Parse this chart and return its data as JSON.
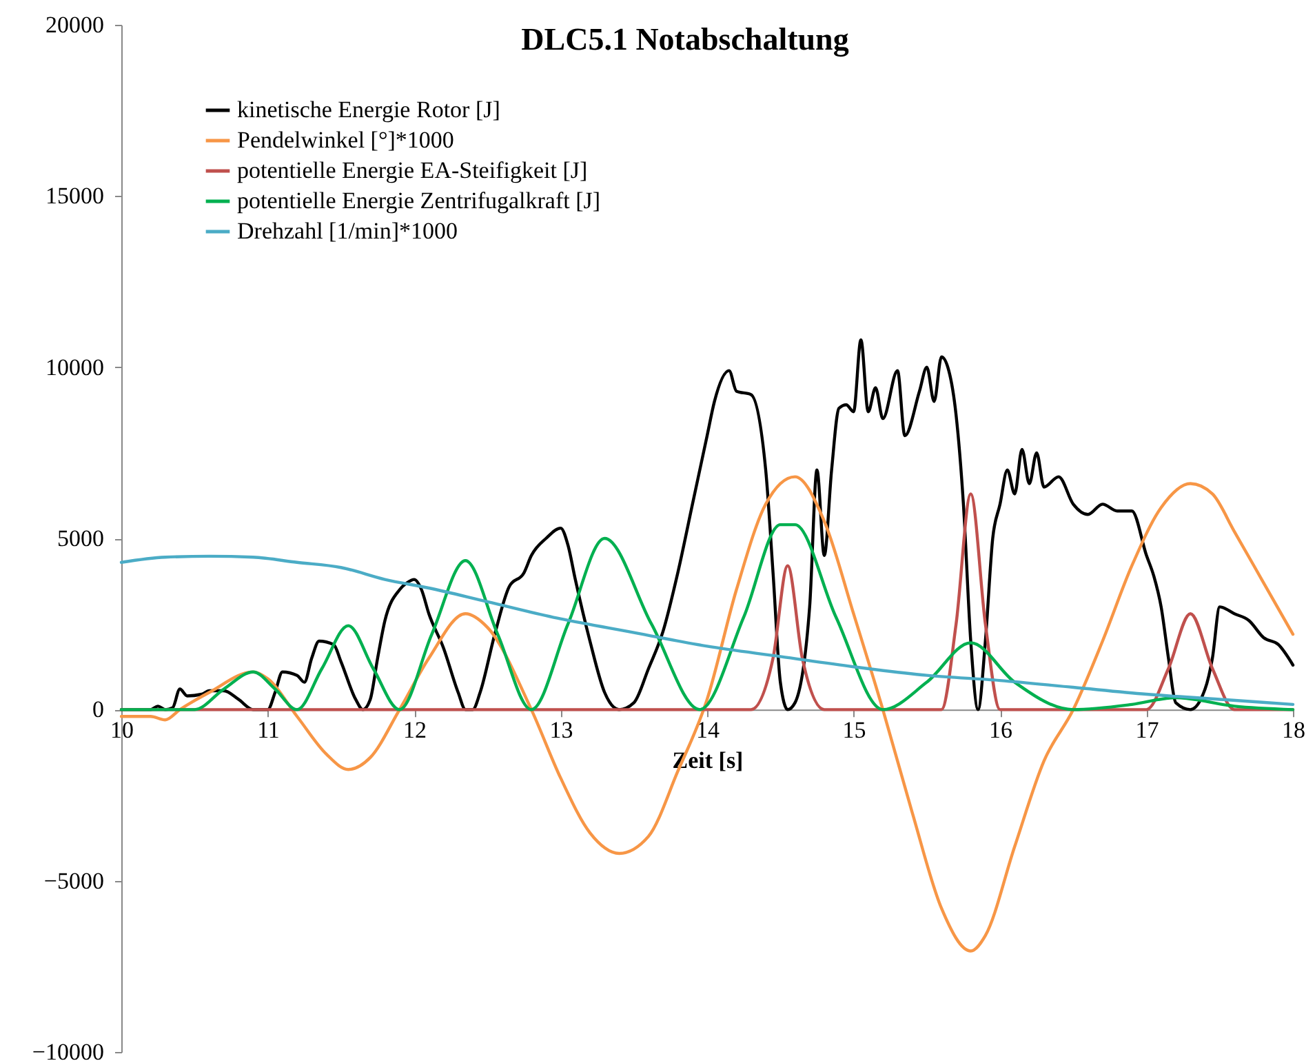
{
  "chart_data": {
    "type": "line",
    "title": "DLC5.1 Notabschaltung",
    "xlabel": "Zeit [s]",
    "xlim": [
      10,
      18
    ],
    "xticks": [
      10,
      11,
      12,
      13,
      14,
      15,
      16,
      17,
      18
    ],
    "ylim": [
      -10000,
      20000
    ],
    "yticks": [
      -10000,
      -5000,
      0,
      5000,
      10000,
      15000,
      20000
    ],
    "grid": false,
    "legend": "top left",
    "series": [
      {
        "name": "kinetische Energie Rotor [J]",
        "color": "#000000",
        "x": [
          10.0,
          10.2,
          10.25,
          10.3,
          10.35,
          10.4,
          10.45,
          10.55,
          10.6,
          10.7,
          10.8,
          10.9,
          11.0,
          11.05,
          11.1,
          11.2,
          11.25,
          11.3,
          11.35,
          11.45,
          11.5,
          11.6,
          11.65,
          11.7,
          11.75,
          11.8,
          11.9,
          11.95,
          12.0,
          12.05,
          12.1,
          12.2,
          12.3,
          12.35,
          12.4,
          12.45,
          12.55,
          12.65,
          12.75,
          12.8,
          12.9,
          13.0,
          13.05,
          13.1,
          13.2,
          13.3,
          13.4,
          13.5,
          13.6,
          13.7,
          13.8,
          13.9,
          14.0,
          14.05,
          14.15,
          14.2,
          14.3,
          14.4,
          14.45,
          14.5,
          14.55,
          14.6,
          14.7,
          14.75,
          14.8,
          14.85,
          14.9,
          14.95,
          15.0,
          15.05,
          15.1,
          15.15,
          15.2,
          15.3,
          15.35,
          15.45,
          15.5,
          15.55,
          15.6,
          15.65,
          15.7,
          15.75,
          15.8,
          15.85,
          15.9,
          15.95,
          16.0,
          16.05,
          16.1,
          16.15,
          16.2,
          16.25,
          16.3,
          16.4,
          16.5,
          16.6,
          16.7,
          16.8,
          16.9,
          17.0,
          17.05,
          17.1,
          17.15,
          17.2,
          17.3,
          17.4,
          17.45,
          17.5,
          17.6,
          17.7,
          17.8,
          17.9,
          18.0
        ],
        "values": [
          0,
          0,
          100,
          0,
          50,
          600,
          400,
          450,
          550,
          550,
          300,
          0,
          0,
          500,
          1100,
          1000,
          800,
          1500,
          2000,
          1900,
          1400,
          300,
          0,
          300,
          1500,
          2600,
          3500,
          3700,
          3800,
          3500,
          2800,
          1800,
          500,
          0,
          0,
          500,
          2200,
          3600,
          4000,
          4500,
          5000,
          5300,
          4800,
          3800,
          2000,
          500,
          0,
          200,
          1200,
          2300,
          4000,
          6000,
          8000,
          9000,
          9900,
          9300,
          9200,
          7000,
          4000,
          800,
          0,
          200,
          3000,
          7000,
          4500,
          7000,
          8800,
          8900,
          8700,
          10800,
          8700,
          9400,
          8500,
          9900,
          8000,
          9300,
          10000,
          9000,
          10300,
          9900,
          8600,
          6000,
          2000,
          0,
          2000,
          5000,
          6000,
          7000,
          6300,
          7600,
          6600,
          7500,
          6500,
          6800,
          6000,
          5700,
          6000,
          5800,
          5800,
          4500,
          3900,
          3000,
          1500,
          200,
          0,
          600,
          1500,
          3000,
          2800,
          2600,
          2100,
          1900,
          1300
        ]
      },
      {
        "name": "Pendelwinkel [°]*1000",
        "color": "#f79646",
        "x": [
          10.0,
          10.2,
          10.3,
          10.4,
          10.6,
          10.9,
          11.0,
          11.2,
          11.4,
          11.55,
          11.7,
          11.9,
          12.1,
          12.35,
          12.5,
          12.8,
          13.0,
          13.2,
          13.4,
          13.6,
          13.8,
          14.0,
          14.2,
          14.4,
          14.6,
          14.8,
          15.0,
          15.2,
          15.4,
          15.6,
          15.8,
          15.9,
          16.1,
          16.3,
          16.5,
          16.7,
          16.9,
          17.1,
          17.3,
          17.45,
          17.6,
          17.8,
          18.0
        ],
        "values": [
          -200,
          -200,
          -300,
          0,
          500,
          1100,
          900,
          -200,
          -1300,
          -1750,
          -1400,
          0,
          1500,
          2800,
          2400,
          0,
          -2000,
          -3600,
          -4200,
          -3700,
          -1800,
          300,
          3500,
          6000,
          6800,
          5500,
          2800,
          0,
          -3000,
          -5800,
          -7050,
          -6600,
          -4000,
          -1500,
          0,
          2000,
          4200,
          5900,
          6600,
          6300,
          5200,
          3700,
          2200
        ]
      },
      {
        "name": "potentielle Energie EA-Steifigkeit  [J]",
        "color": "#c0504d",
        "x": [
          10.0,
          14.3,
          14.45,
          14.55,
          14.65,
          14.8,
          15.6,
          15.7,
          15.8,
          15.9,
          16.0,
          17.0,
          17.15,
          17.3,
          17.45,
          17.6,
          18.0
        ],
        "values": [
          0,
          0,
          1500,
          4200,
          1500,
          0,
          0,
          2500,
          6300,
          2500,
          0,
          0,
          1200,
          2800,
          1200,
          0,
          0
        ]
      },
      {
        "name": "potentielle Energie Zentrifugalkraft  [J]",
        "color": "#00b050",
        "x": [
          10.0,
          10.5,
          10.7,
          10.9,
          11.05,
          11.2,
          11.37,
          11.55,
          11.72,
          11.9,
          12.12,
          12.35,
          12.57,
          12.8,
          13.05,
          13.3,
          13.62,
          13.95,
          14.25,
          14.5,
          14.6,
          14.88,
          15.2,
          15.5,
          15.8,
          16.1,
          16.5,
          16.9,
          17.2,
          17.6,
          18.0
        ],
        "values": [
          0,
          0,
          600,
          1100,
          600,
          0,
          1200,
          2450,
          1200,
          0,
          2200,
          4350,
          2200,
          0,
          2500,
          5000,
          2500,
          0,
          2700,
          5400,
          5400,
          2700,
          0,
          800,
          1950,
          800,
          0,
          150,
          350,
          100,
          0
        ]
      },
      {
        "name": "Drehzahl [1/min]*1000",
        "color": "#4bacc6",
        "x": [
          10.0,
          10.3,
          10.6,
          10.9,
          11.2,
          11.5,
          11.8,
          12.1,
          12.5,
          13.0,
          13.5,
          14.0,
          14.5,
          15.0,
          15.5,
          16.0,
          16.5,
          17.0,
          17.5,
          18.0
        ],
        "values": [
          4300,
          4450,
          4480,
          4450,
          4300,
          4150,
          3800,
          3550,
          3150,
          2650,
          2250,
          1850,
          1550,
          1250,
          1000,
          850,
          650,
          450,
          300,
          150
        ]
      }
    ]
  }
}
